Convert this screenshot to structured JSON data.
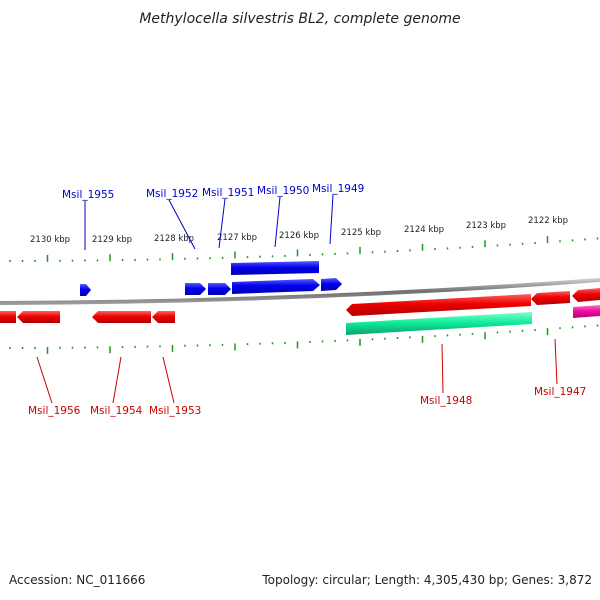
{
  "title": "Methylocella silvestris BL2, complete genome",
  "accession": "Accession: NC_011666",
  "stats": "Topology: circular; Length: 4,305,430 bp; Genes: 3,872",
  "colors": {
    "forward_gene": "#0000ee",
    "reverse_gene": "#ee0000",
    "reverse_cds": "#10ee9a",
    "reverse_other": "#ee10a0",
    "tick": "#1a9a1a",
    "backbone": "#808080",
    "forward_label": "#0000cc",
    "reverse_label": "#cc0000"
  },
  "scale_labels": [
    "2130 kbp",
    "2129 kbp",
    "2128 kbp",
    "2127 kbp",
    "2126 kbp",
    "2125 kbp",
    "2124 kbp",
    "2123 kbp",
    "2122 kbp"
  ],
  "forward_labels": [
    "Msil_1955",
    "Msil_1952",
    "Msil_1951",
    "Msil_1950",
    "Msil_1949"
  ],
  "reverse_labels": [
    "Msil_1956",
    "Msil_1954",
    "Msil_1953",
    "Msil_1948",
    "Msil_1947"
  ]
}
